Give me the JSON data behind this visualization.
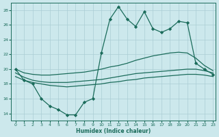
{
  "background_color": "#cce8ec",
  "grid_color": "#aacdd4",
  "line_color": "#1a6b5a",
  "xlabel": "Humidex (Indice chaleur)",
  "xlim_min": -0.5,
  "xlim_max": 23.3,
  "ylim_min": 13.0,
  "ylim_max": 29.0,
  "yticks": [
    14,
    16,
    18,
    20,
    22,
    24,
    26,
    28
  ],
  "xticks": [
    0,
    1,
    2,
    3,
    4,
    5,
    6,
    7,
    8,
    9,
    10,
    11,
    12,
    13,
    14,
    15,
    16,
    17,
    18,
    19,
    20,
    21,
    22,
    23
  ],
  "jagged_x": [
    0,
    1,
    2,
    3,
    4,
    5,
    6,
    7,
    8,
    9,
    10,
    11,
    12,
    13,
    14,
    15,
    16,
    17,
    18,
    19,
    20,
    21,
    22,
    23
  ],
  "jagged_y": [
    20.0,
    18.5,
    18.0,
    16.0,
    15.0,
    14.5,
    13.8,
    13.8,
    15.5,
    16.0,
    22.2,
    26.8,
    28.5,
    26.8,
    25.8,
    27.8,
    25.5,
    25.0,
    25.5,
    26.5,
    26.3,
    20.8,
    20.0,
    19.3
  ],
  "diag_upper_x": [
    0,
    1,
    2,
    3,
    4,
    5,
    6,
    7,
    8,
    9,
    10,
    11,
    12,
    13,
    14,
    15,
    16,
    17,
    18,
    19,
    20,
    21,
    22,
    23
  ],
  "diag_upper_y": [
    20.0,
    19.5,
    19.3,
    19.2,
    19.2,
    19.3,
    19.4,
    19.5,
    19.6,
    19.8,
    20.0,
    20.3,
    20.5,
    20.8,
    21.2,
    21.5,
    21.8,
    22.0,
    22.2,
    22.3,
    22.2,
    21.5,
    20.5,
    19.8
  ],
  "diag_lower_x": [
    0,
    1,
    2,
    3,
    4,
    5,
    6,
    7,
    8,
    9,
    10,
    11,
    12,
    13,
    14,
    15,
    16,
    17,
    18,
    19,
    20,
    21,
    22,
    23
  ],
  "diag_lower_y": [
    19.5,
    18.9,
    18.5,
    18.3,
    18.2,
    18.2,
    18.2,
    18.3,
    18.4,
    18.5,
    18.6,
    18.8,
    19.0,
    19.2,
    19.4,
    19.5,
    19.6,
    19.7,
    19.8,
    19.9,
    20.0,
    20.0,
    19.8,
    19.5
  ],
  "smooth_low_x": [
    0,
    1,
    2,
    3,
    4,
    5,
    6,
    7,
    8,
    9,
    10,
    11,
    12,
    13,
    14,
    15,
    16,
    17,
    18,
    19,
    20,
    21,
    22,
    23
  ],
  "smooth_low_y": [
    19.0,
    18.5,
    18.2,
    18.0,
    17.8,
    17.7,
    17.6,
    17.7,
    17.8,
    17.9,
    18.0,
    18.2,
    18.3,
    18.5,
    18.6,
    18.8,
    18.9,
    19.0,
    19.1,
    19.2,
    19.3,
    19.3,
    19.2,
    19.0
  ]
}
